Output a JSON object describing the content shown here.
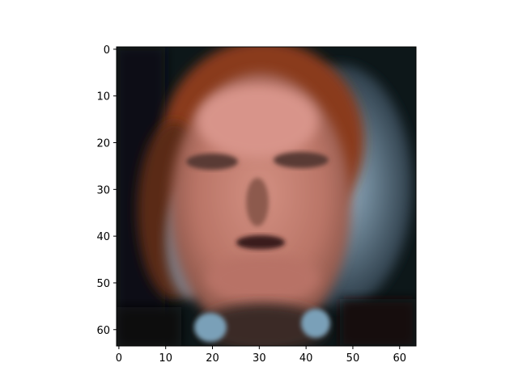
{
  "image": {
    "description": "blurred low-resolution 64x64 face image shown with matplotlib imshow",
    "palette": {
      "background_dark": "#0b1416",
      "skin": "#c07868",
      "skin_highlight": "#d8948a",
      "hair": "#8a3a1a",
      "backdrop_blue": "#7a9ab0",
      "shirt": "#1a1414"
    }
  },
  "axes": {
    "x_ticks": [
      "0",
      "10",
      "20",
      "30",
      "40",
      "50",
      "60"
    ],
    "y_ticks": [
      "0",
      "10",
      "20",
      "30",
      "40",
      "50",
      "60"
    ],
    "x_tick_values": [
      0,
      10,
      20,
      30,
      40,
      50,
      60
    ],
    "y_tick_values": [
      0,
      10,
      20,
      30,
      40,
      50,
      60
    ],
    "xlim": [
      -0.5,
      63.5
    ],
    "ylim": [
      63.5,
      -0.5
    ]
  }
}
